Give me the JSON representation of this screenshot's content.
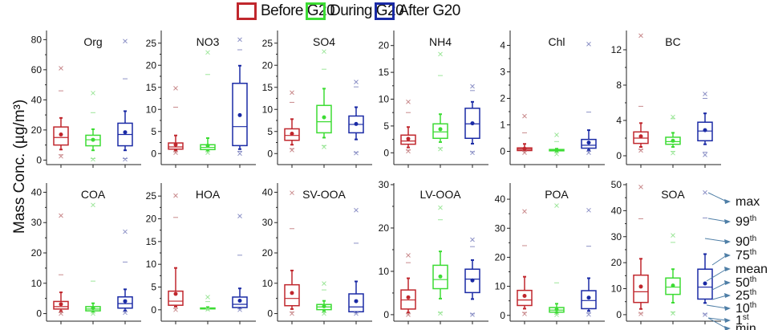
{
  "legend": {
    "items": [
      {
        "label": "Before G20",
        "color": "#c0272d"
      },
      {
        "label": "During G20",
        "color": "#3ddc34"
      },
      {
        "label": "After G20",
        "color": "#1a2aa5"
      }
    ]
  },
  "ylabel": "Mass Conc. (µg/m³)",
  "key": {
    "labels": [
      {
        "base": "max",
        "sup": ""
      },
      {
        "base": "99",
        "sup": "th"
      },
      {
        "base": "90",
        "sup": "th"
      },
      {
        "base": "75",
        "sup": "th"
      },
      {
        "base": "mean",
        "sup": ""
      },
      {
        "base": "50",
        "sup": "th"
      },
      {
        "base": "25",
        "sup": "th"
      },
      {
        "base": "10",
        "sup": "th"
      },
      {
        "base": "1",
        "sup": "st"
      },
      {
        "base": "min",
        "sup": ""
      }
    ]
  },
  "chart_data": {
    "type": "box",
    "title": "",
    "ylabel": "Mass Conc. (µg/m³)",
    "series_names": [
      "Before G20",
      "During G20",
      "After G20"
    ],
    "stat_order": [
      "min",
      "p1",
      "p10",
      "p25",
      "p50",
      "mean",
      "p75",
      "p90",
      "p99",
      "max"
    ],
    "panels": [
      {
        "title": "Org",
        "ylim": [
          -3,
          85
        ],
        "yticks": [
          0,
          20,
          40,
          60,
          80
        ],
        "boxes": [
          {
            "min": 2.5,
            "p1": 3.5,
            "p10": 7,
            "p25": 10,
            "p50": 15,
            "mean": 17,
            "p75": 22,
            "p90": 28,
            "p99": 46,
            "max": 61
          },
          {
            "min": 0.5,
            "p1": 1,
            "p10": 6.5,
            "p25": 9.5,
            "p50": 13.5,
            "mean": 13.5,
            "p75": 16.5,
            "p90": 20.5,
            "p99": 31.5,
            "max": 44.5
          },
          {
            "min": 0.5,
            "p1": 1,
            "p10": 6.5,
            "p25": 9.5,
            "p50": 17,
            "mean": 18.5,
            "p75": 24.5,
            "p90": 32.5,
            "p99": 54,
            "max": 79
          }
        ]
      },
      {
        "title": "NO3",
        "ylim": [
          -2.5,
          27.5
        ],
        "yticks": [
          0,
          5,
          10,
          15,
          20,
          25
        ],
        "boxes": [
          {
            "min": 0.2,
            "p1": 0.4,
            "p10": 0.7,
            "p25": 1.0,
            "p50": 1.5,
            "mean": 2.0,
            "p75": 2.4,
            "p90": 4.1,
            "p99": 10.5,
            "max": 14.8
          },
          {
            "min": 0.2,
            "p1": 0.4,
            "p10": 0.6,
            "p25": 0.9,
            "p50": 1.4,
            "mean": 1.8,
            "p75": 2.0,
            "p90": 3.5,
            "p99": 17.9,
            "max": 22.9
          },
          {
            "min": 0.0,
            "p1": 0.5,
            "p10": 1.0,
            "p25": 1.8,
            "p50": 6.1,
            "mean": 8.7,
            "p75": 15.9,
            "p90": 19.9,
            "p99": 23.5,
            "max": 25.8
          }
        ]
      },
      {
        "title": "SO4",
        "ylim": [
          -2.5,
          27.5
        ],
        "yticks": [
          0,
          5,
          10,
          15,
          20,
          25
        ],
        "boxes": [
          {
            "min": 0.8,
            "p1": 1.1,
            "p10": 2.0,
            "p25": 3.0,
            "p50": 4.1,
            "mean": 4.5,
            "p75": 5.6,
            "p90": 7.8,
            "p99": 11.6,
            "max": 13.8
          },
          {
            "min": 1.5,
            "p1": 1.8,
            "p10": 3.6,
            "p25": 4.7,
            "p50": 7.2,
            "mean": 8.2,
            "p75": 10.9,
            "p90": 14.7,
            "p99": 19.1,
            "max": 23.1
          },
          {
            "min": 0.1,
            "p1": 0.3,
            "p10": 3.2,
            "p25": 4.7,
            "p50": 6.6,
            "mean": 6.7,
            "p75": 8.5,
            "p90": 10.5,
            "p99": 15.1,
            "max": 16.2
          }
        ]
      },
      {
        "title": "NH4",
        "ylim": [
          -2.2,
          22.5
        ],
        "yticks": [
          0,
          5,
          10,
          15,
          20
        ],
        "boxes": [
          {
            "min": 0.3,
            "p1": 0.5,
            "p10": 1.0,
            "p25": 1.6,
            "p50": 2.2,
            "mean": 2.6,
            "p75": 3.3,
            "p90": 4.8,
            "p99": 7.5,
            "max": 9.5
          },
          {
            "min": 0.7,
            "p1": 0.9,
            "p10": 2.0,
            "p25": 2.7,
            "p50": 3.9,
            "mean": 4.4,
            "p75": 5.4,
            "p90": 7.2,
            "p99": 14.4,
            "max": 18.4
          },
          {
            "min": 0.0,
            "p1": 0.2,
            "p10": 1.7,
            "p25": 2.7,
            "p50": 5.4,
            "mean": 5.5,
            "p75": 8.3,
            "p90": 9.5,
            "p99": 11.6,
            "max": 12.4
          }
        ]
      },
      {
        "title": "Chl",
        "ylim": [
          -0.5,
          4.5
        ],
        "yticks": [
          0,
          1,
          2,
          3,
          4
        ],
        "boxes": [
          {
            "min": -0.05,
            "p1": 0.0,
            "p10": 0.0,
            "p25": 0.03,
            "p50": 0.08,
            "mean": 0.1,
            "p75": 0.13,
            "p90": 0.28,
            "p99": 0.7,
            "max": 1.33
          },
          {
            "min": -0.1,
            "p1": -0.05,
            "p10": 0.0,
            "p25": 0.02,
            "p50": 0.04,
            "mean": 0.05,
            "p75": 0.07,
            "p90": 0.1,
            "p99": 0.37,
            "max": 0.62
          },
          {
            "min": -0.05,
            "p1": 0.0,
            "p10": 0.05,
            "p25": 0.12,
            "p50": 0.23,
            "mean": 0.33,
            "p75": 0.45,
            "p90": 0.8,
            "p99": 1.48,
            "max": 4.05
          }
        ]
      },
      {
        "title": "BC",
        "ylim": [
          -1,
          14
        ],
        "yticks": [
          0,
          4,
          8,
          12
        ],
        "boxes": [
          {
            "min": 0.6,
            "p1": 0.7,
            "p10": 1.0,
            "p25": 1.4,
            "p50": 2.0,
            "mean": 2.2,
            "p75": 2.7,
            "p90": 3.7,
            "p99": 5.6,
            "max": 13.6
          },
          {
            "min": 0.3,
            "p1": 0.5,
            "p10": 1.0,
            "p25": 1.3,
            "p50": 1.6,
            "mean": 1.7,
            "p75": 2.1,
            "p90": 2.6,
            "p99": 4.2,
            "max": 4.4
          },
          {
            "min": 0.1,
            "p1": 0.4,
            "p10": 1.3,
            "p25": 1.7,
            "p50": 2.8,
            "mean": 2.9,
            "p75": 3.8,
            "p90": 4.8,
            "p99": 6.5,
            "max": 7.0
          }
        ]
      },
      {
        "title": "COA",
        "ylim": [
          -2.5,
          42.5
        ],
        "yticks": [
          0,
          10,
          20,
          30,
          40
        ],
        "boxes": [
          {
            "min": 0.0,
            "p1": 0.3,
            "p10": 0.8,
            "p25": 1.5,
            "p50": 2.3,
            "mean": 3.1,
            "p75": 4.0,
            "p90": 7.0,
            "p99": 12.8,
            "max": 32.3
          },
          {
            "min": 0.0,
            "p1": 0.2,
            "p10": 0.6,
            "p25": 0.9,
            "p50": 1.5,
            "mean": 1.8,
            "p75": 2.3,
            "p90": 3.4,
            "p99": 10.7,
            "max": 35.8
          },
          {
            "min": 0.3,
            "p1": 0.6,
            "p10": 1.0,
            "p25": 1.8,
            "p50": 3.3,
            "mean": 4.1,
            "p75": 5.5,
            "p90": 8.0,
            "p99": 17.0,
            "max": 27.0
          }
        ]
      },
      {
        "title": "HOA",
        "ylim": [
          -2.5,
          27.5
        ],
        "yticks": [
          0,
          5,
          10,
          15,
          20,
          25
        ],
        "boxes": [
          {
            "min": 0.0,
            "p1": 0.3,
            "p10": 0.7,
            "p25": 1.0,
            "p50": 1.9,
            "mean": 3.5,
            "p75": 4.1,
            "p90": 9.2,
            "p99": 20.3,
            "max": 25.1
          },
          {
            "min": 0.1,
            "p1": 0.1,
            "p10": 0.1,
            "p25": 0.2,
            "p50": 0.3,
            "mean": 0.3,
            "p75": 0.4,
            "p90": 0.6,
            "p99": 1.8,
            "max": 2.8
          },
          {
            "min": 0.0,
            "p1": 0.2,
            "p10": 0.3,
            "p25": 0.5,
            "p50": 1.2,
            "mean": 2.0,
            "p75": 2.8,
            "p90": 4.7,
            "p99": 12.0,
            "max": 20.6
          }
        ]
      },
      {
        "title": "SV-OOA",
        "ylim": [
          -2.5,
          42.5
        ],
        "yticks": [
          0,
          10,
          20,
          30,
          40
        ],
        "boxes": [
          {
            "min": 0.0,
            "p1": 0.5,
            "p10": 1.5,
            "p25": 2.6,
            "p50": 5.0,
            "mean": 6.8,
            "p75": 9.5,
            "p90": 14.2,
            "p99": 28.0,
            "max": 39.8
          },
          {
            "min": 0.0,
            "p1": 0.3,
            "p10": 0.8,
            "p25": 1.3,
            "p50": 2.2,
            "mean": 2.4,
            "p75": 3.0,
            "p90": 4.2,
            "p99": 7.8,
            "max": 9.9
          },
          {
            "min": 0.0,
            "p1": 0.2,
            "p10": 0.4,
            "p25": 0.6,
            "p50": 2.2,
            "mean": 4.1,
            "p75": 6.5,
            "p90": 10.6,
            "p99": 23.2,
            "max": 34.1
          }
        ]
      },
      {
        "title": "LV-OOA",
        "ylim": [
          -1.5,
          30
        ],
        "yticks": [
          0,
          10,
          20,
          30
        ],
        "boxes": [
          {
            "min": 0.0,
            "p1": 0.2,
            "p10": 0.5,
            "p25": 1.3,
            "p50": 3.4,
            "mean": 4.0,
            "p75": 5.7,
            "p90": 8.4,
            "p99": 12.0,
            "max": 13.7
          },
          {
            "min": 0.3,
            "p1": 0.5,
            "p10": 3.7,
            "p25": 6.0,
            "p50": 8.1,
            "mean": 8.8,
            "p75": 11.4,
            "p90": 14.6,
            "p99": 21.9,
            "max": 24.7
          },
          {
            "min": 0.0,
            "p1": 0.2,
            "p10": 3.6,
            "p25": 5.1,
            "p50": 8.2,
            "mean": 7.9,
            "p75": 10.5,
            "p90": 12.6,
            "p99": 15.7,
            "max": 17.3
          }
        ]
      },
      {
        "title": "POA",
        "ylim": [
          -2,
          45
        ],
        "yticks": [
          0,
          10,
          20,
          30,
          40
        ],
        "boxes": [
          {
            "min": 0.5,
            "p1": 1.0,
            "p10": 2.3,
            "p25": 3.4,
            "p50": 5.3,
            "mean": 6.7,
            "p75": 8.6,
            "p90": 13.3,
            "p99": 24.0,
            "max": 35.8
          },
          {
            "min": 0.2,
            "p1": 0.4,
            "p10": 0.8,
            "p25": 1.1,
            "p50": 1.8,
            "mean": 2.0,
            "p75": 2.7,
            "p90": 4.0,
            "p99": 11.2,
            "max": 37.8
          },
          {
            "min": 0.3,
            "p1": 0.8,
            "p10": 1.5,
            "p25": 2.3,
            "p50": 5.1,
            "mean": 6.1,
            "p75": 8.5,
            "p90": 12.8,
            "p99": 23.8,
            "max": 36.2
          }
        ]
      },
      {
        "title": "SOA",
        "ylim": [
          -2.5,
          50
        ],
        "yticks": [
          0,
          10,
          20,
          30,
          40,
          50
        ],
        "boxes": [
          {
            "min": 0.3,
            "p1": 0.6,
            "p10": 2.2,
            "p25": 4.7,
            "p50": 8.8,
            "mean": 10.8,
            "p75": 15.2,
            "p90": 21.5,
            "p99": 36.9,
            "max": 49.1
          },
          {
            "min": 0.5,
            "p1": 1.0,
            "p10": 4.6,
            "p25": 7.8,
            "p50": 10.6,
            "mean": 11.2,
            "p75": 14.1,
            "p90": 17.5,
            "p99": 27.8,
            "max": 30.5
          },
          {
            "min": 0.0,
            "p1": 0.3,
            "p10": 4.5,
            "p25": 6.0,
            "p50": 10.6,
            "mean": 12.0,
            "p75": 17.5,
            "p90": 23.3,
            "p99": 37.2,
            "max": 47.0
          }
        ]
      }
    ]
  }
}
